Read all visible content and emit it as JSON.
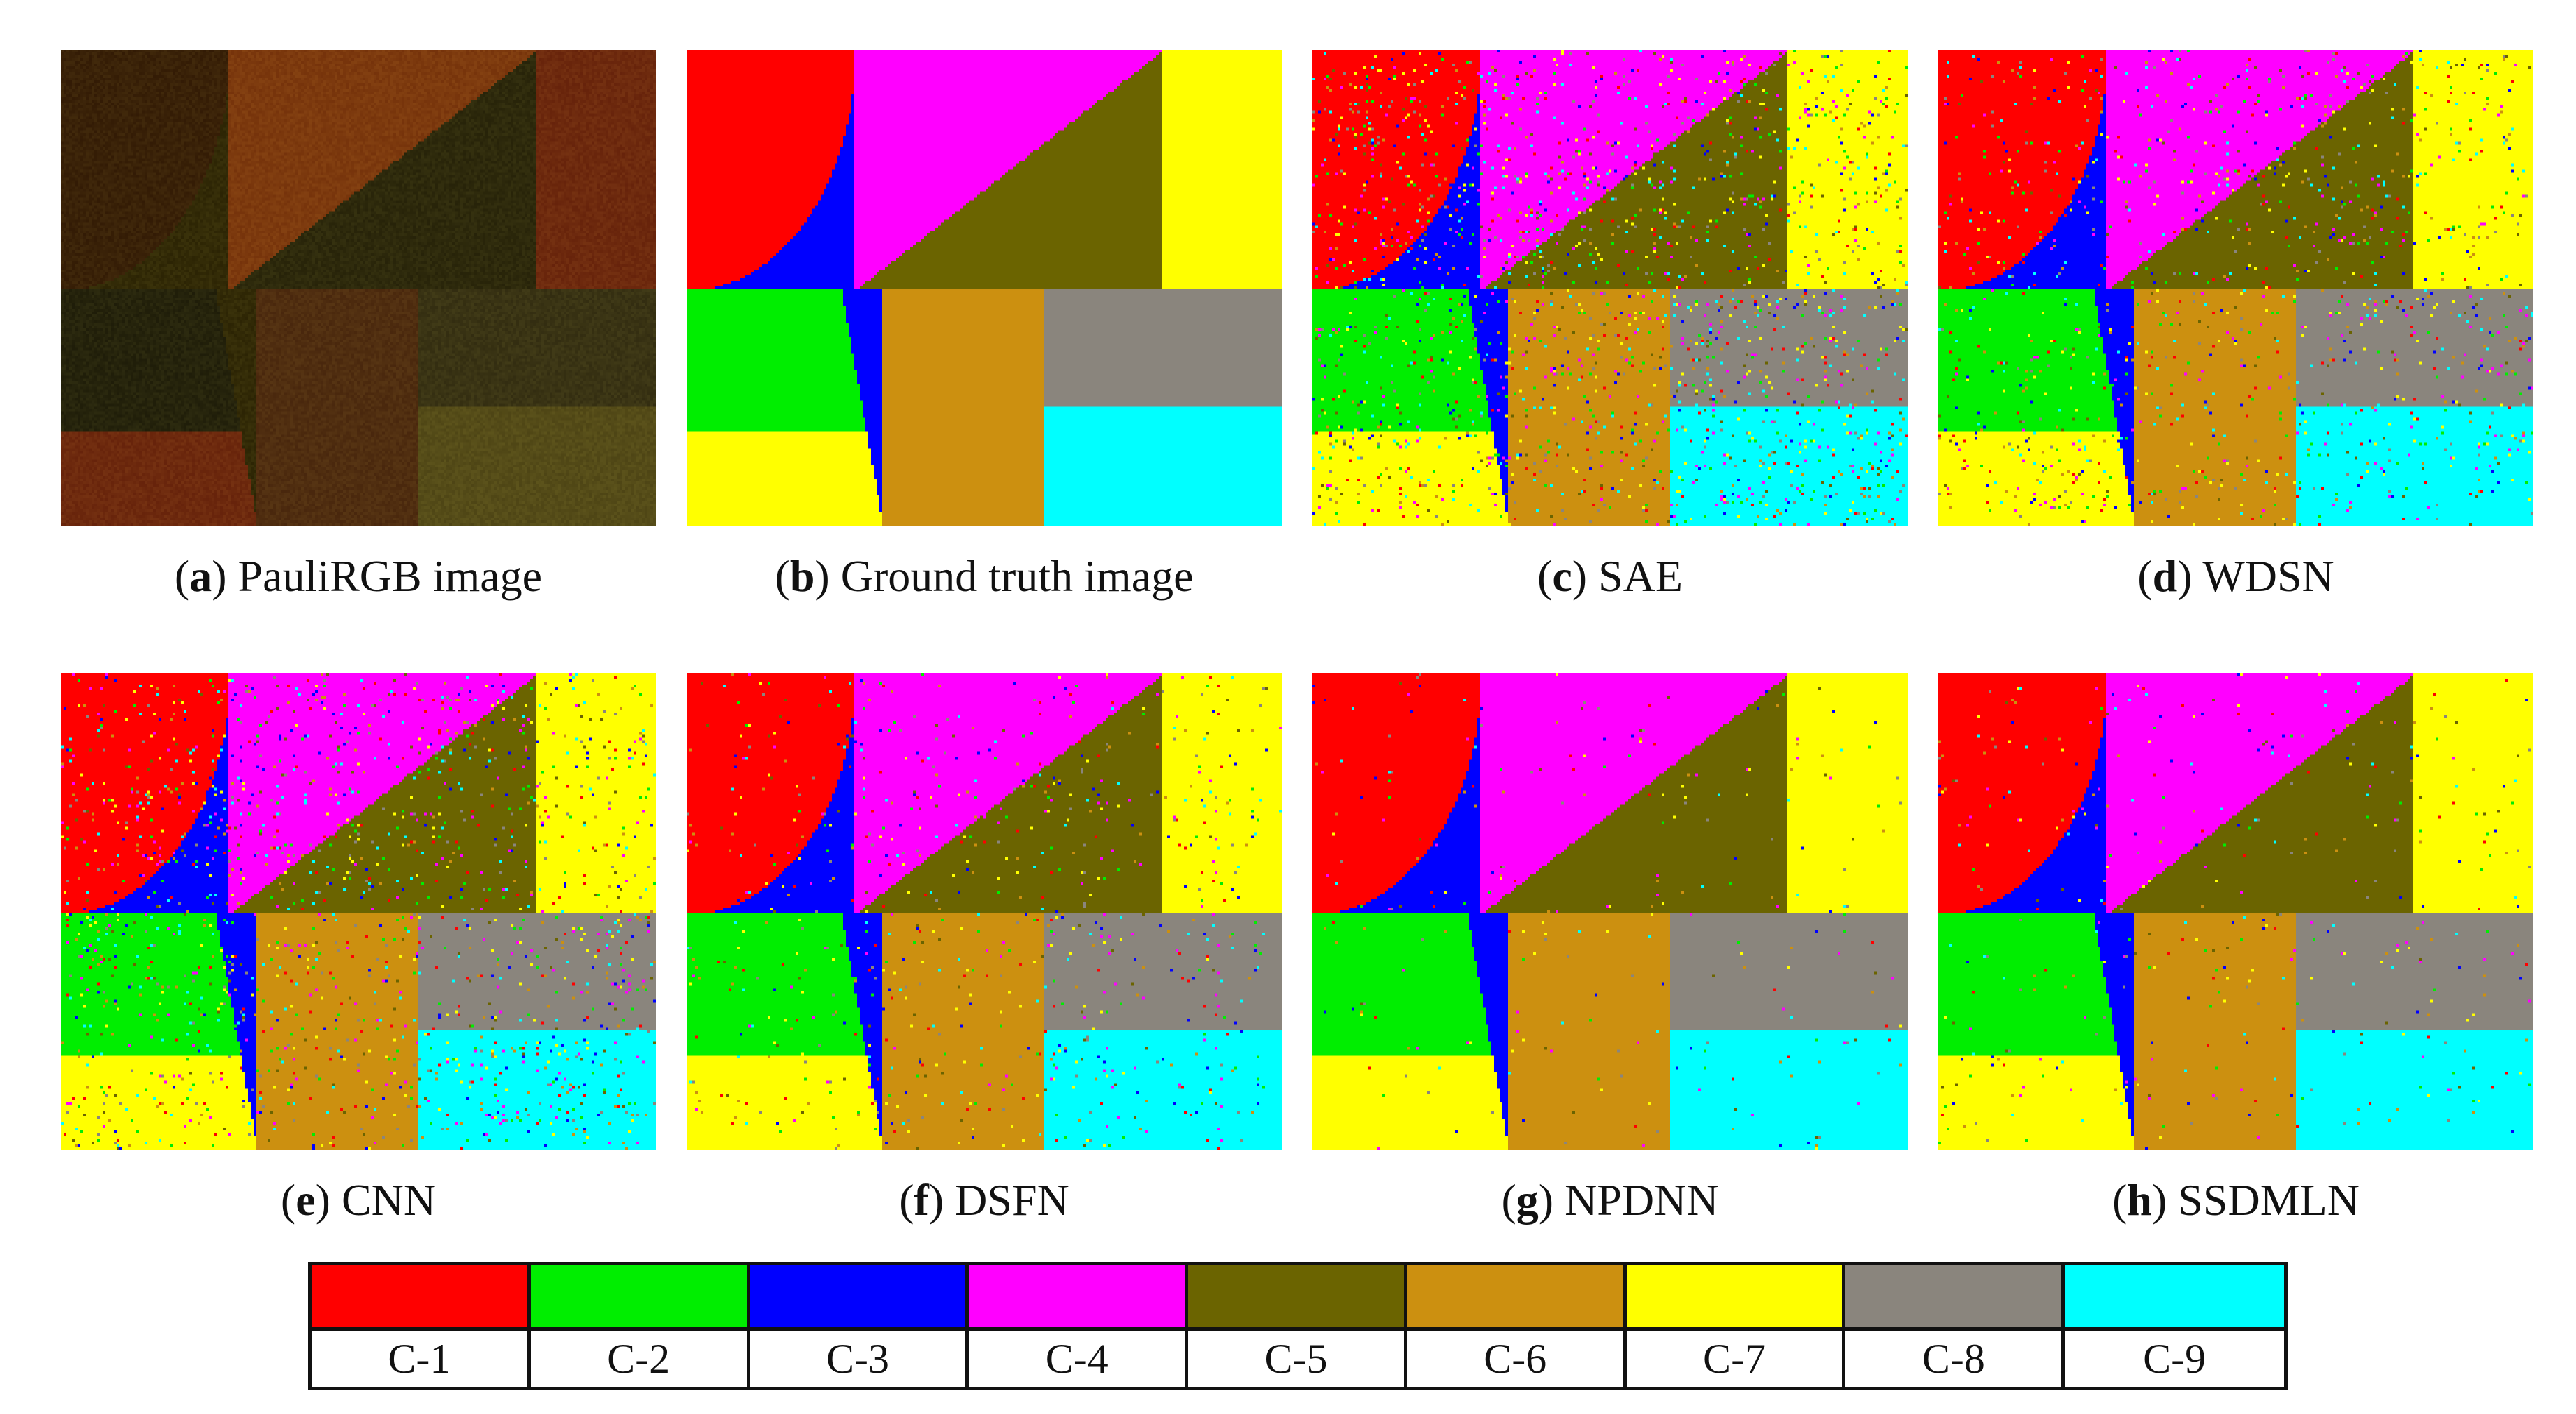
{
  "figure": {
    "panels": [
      {
        "id": "a",
        "title": "PauliRGB image",
        "kind": "pauli"
      },
      {
        "id": "b",
        "title": "Ground truth image",
        "kind": "classmap",
        "noise": 0
      },
      {
        "id": "c",
        "title": "SAE",
        "kind": "classmap",
        "noise": 0.055
      },
      {
        "id": "d",
        "title": "WDSN",
        "kind": "classmap",
        "noise": 0.035
      },
      {
        "id": "e",
        "title": "CNN",
        "kind": "classmap",
        "noise": 0.045
      },
      {
        "id": "f",
        "title": "DSFN",
        "kind": "classmap",
        "noise": 0.022
      },
      {
        "id": "g",
        "title": "NPDNN",
        "kind": "classmap",
        "noise": 0.008
      },
      {
        "id": "h",
        "title": "SSDMLN",
        "kind": "classmap",
        "noise": 0.012
      }
    ]
  },
  "legend": [
    {
      "label": "C-1",
      "color": "#ff0000"
    },
    {
      "label": "C-2",
      "color": "#00ee00"
    },
    {
      "label": "C-3",
      "color": "#0000ff"
    },
    {
      "label": "C-4",
      "color": "#ff00ff"
    },
    {
      "label": "C-5",
      "color": "#6b6400"
    },
    {
      "label": "C-6",
      "color": "#cc9010"
    },
    {
      "label": "C-7",
      "color": "#ffff00"
    },
    {
      "label": "C-8",
      "color": "#8a857d"
    },
    {
      "label": "C-9",
      "color": "#00ffff"
    }
  ],
  "pauli_colors": {
    "C-1": "#3a2208",
    "C-2": "#26240c",
    "C-3": "#332b07",
    "C-4": "#7d3a0e",
    "C-5": "#2e2a0c",
    "C-6": "#502e10",
    "C-7": "#6e2a0e",
    "C-8": "#3a3414",
    "C-9": "#554c18"
  }
}
